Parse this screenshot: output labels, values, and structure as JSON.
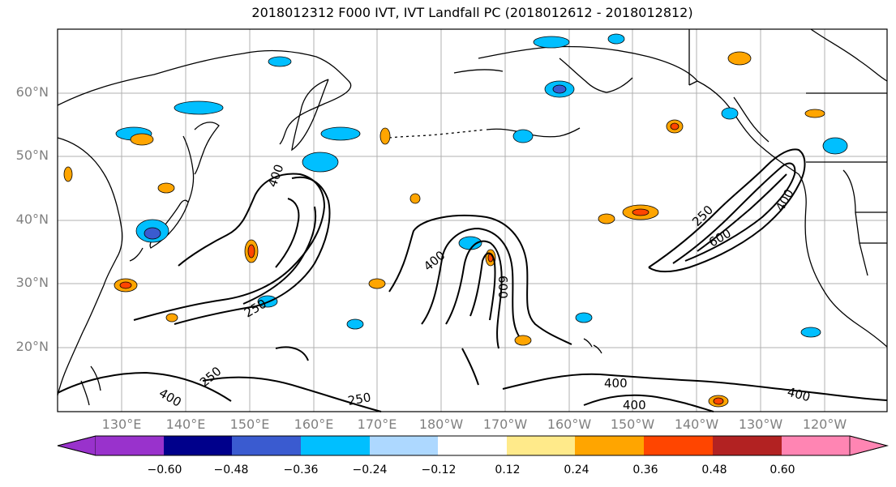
{
  "title": "2018012312 F000 IVT, IVT Landfall PC (2018012612 - 2018012812)",
  "lat_labels": [
    "60°N",
    "50°N",
    "40°N",
    "30°N",
    "20°N"
  ],
  "lon_labels": [
    "130°E",
    "140°E",
    "150°E",
    "160°E",
    "170°E",
    "180°W",
    "170°W",
    "160°W",
    "150°W",
    "140°W",
    "130°W",
    "120°W"
  ],
  "colorbar": {
    "colors": [
      "#9932cc",
      "#00008b",
      "#3a5bd0",
      "#00bfff",
      "#add8ff",
      "#ffffff",
      "#ffea8a",
      "#ffa500",
      "#ff4500",
      "#b22222",
      "#ff85b3"
    ],
    "ticks": [
      "−0.60",
      "−0.48",
      "−0.36",
      "−0.24",
      "−0.12",
      "0.12",
      "0.24",
      "0.36",
      "0.48",
      "0.60"
    ]
  },
  "contour_labels": [
    "400",
    "250",
    "250",
    "400",
    "400",
    "600",
    "250",
    "400",
    "400",
    "600",
    "400",
    "250",
    "400"
  ]
}
